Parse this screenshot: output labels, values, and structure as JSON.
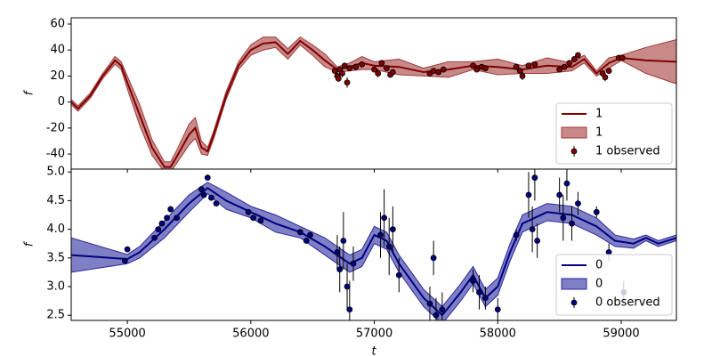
{
  "chart_data": [
    {
      "type": "line",
      "ylabel": "f",
      "legend": "lower right",
      "xlim": [
        54545,
        59447
      ],
      "ylim": [
        -51.6,
        64.8
      ],
      "xticks": [
        55000,
        56000,
        57000,
        58000,
        59000
      ],
      "yticks": [
        -40,
        -20,
        0,
        20,
        40,
        60
      ],
      "x": [
        54545,
        54600,
        54700,
        54800,
        54900,
        54950,
        55000,
        55100,
        55200,
        55300,
        55350,
        55400,
        55500,
        55550,
        55600,
        55650,
        55700,
        55800,
        55900,
        56000,
        56100,
        56200,
        56300,
        56400,
        56500,
        56600,
        56700,
        56800,
        56900,
        57000,
        57200,
        57400,
        57600,
        57800,
        58000,
        58200,
        58400,
        58600,
        58700,
        58800,
        58900,
        59000,
        59200,
        59447
      ],
      "series": [
        {
          "name": "1",
          "color": "#800000",
          "values": [
            0,
            -5,
            5,
            20,
            32,
            28,
            15,
            -10,
            -35,
            -50,
            -50,
            -42,
            -25,
            -20,
            -35,
            -38,
            -25,
            5,
            28,
            40,
            45,
            46,
            37,
            47,
            40,
            32,
            25,
            27,
            30,
            28,
            27,
            23,
            25,
            28,
            27,
            25,
            28,
            27,
            33,
            22,
            30,
            34,
            32,
            31
          ]
        }
      ],
      "band": {
        "name": "1",
        "color": "#a33a3a",
        "lower": [
          -2,
          -7,
          3,
          18,
          29,
          25,
          10,
          -18,
          -41,
          -54,
          -54,
          -47,
          -33,
          -28,
          -40,
          -41,
          -28,
          2,
          25,
          36,
          40,
          42,
          33,
          44,
          36,
          27,
          23,
          24,
          25,
          25,
          21,
          20,
          19,
          25,
          21,
          22,
          22,
          24,
          30,
          20,
          26,
          32,
          22,
          14
        ],
        "upper": [
          2,
          -3,
          7,
          22,
          35,
          31,
          20,
          -2,
          -29,
          -46,
          -46,
          -37,
          -17,
          -12,
          -30,
          -35,
          -22,
          8,
          31,
          44,
          50,
          50,
          41,
          50,
          44,
          37,
          27,
          30,
          35,
          31,
          33,
          26,
          31,
          31,
          33,
          28,
          34,
          30,
          36,
          24,
          34,
          36,
          42,
          48
        ]
      },
      "observed": {
        "name": "1 observed",
        "color": "#800000",
        "x": [
          56680,
          56700,
          56710,
          56720,
          56740,
          56760,
          56780,
          56800,
          56850,
          56900,
          57000,
          57030,
          57060,
          57100,
          57130,
          57150,
          57450,
          57480,
          57520,
          57560,
          57800,
          57830,
          57870,
          57900,
          58150,
          58180,
          58200,
          58250,
          58300,
          58500,
          58540,
          58580,
          58620,
          58650,
          58850,
          58870,
          58900,
          58980,
          59010
        ],
        "values": [
          24,
          20,
          18,
          25,
          22,
          28,
          15,
          26,
          27,
          29,
          25,
          22,
          30,
          26,
          21,
          23,
          22,
          24,
          23,
          25,
          28,
          25,
          27,
          26,
          27,
          24,
          20,
          28,
          29,
          25,
          27,
          30,
          33,
          36,
          22,
          19,
          24,
          34,
          34
        ],
        "errors": [
          2,
          3,
          2,
          2,
          3,
          2,
          4,
          2,
          2,
          2,
          2,
          3,
          2,
          2,
          2,
          2,
          2,
          2,
          2,
          2,
          2,
          2,
          2,
          2,
          2,
          2,
          3,
          2,
          2,
          2,
          2,
          2,
          2,
          2,
          2,
          3,
          2,
          2,
          2
        ]
      }
    },
    {
      "type": "line",
      "ylabel": "f",
      "xlabel": "t",
      "legend": "lower right",
      "xlim": [
        54545,
        59447
      ],
      "ylim": [
        2.41,
        5.05
      ],
      "xticks": [
        55000,
        56000,
        57000,
        58000,
        59000
      ],
      "yticks": [
        2.5,
        {
          "value": 3,
          "label": "3.0"
        },
        3.5,
        {
          "value": 4,
          "label": "4.0"
        },
        4.5,
        {
          "value": 5,
          "label": "5.0"
        }
      ],
      "x": [
        54545,
        55000,
        55100,
        55300,
        55500,
        55650,
        55800,
        56000,
        56200,
        56400,
        56600,
        56800,
        56900,
        57000,
        57100,
        57200,
        57400,
        57550,
        57700,
        57800,
        57900,
        58000,
        58100,
        58200,
        58400,
        58600,
        58800,
        58950,
        59100,
        59200,
        59300,
        59447
      ],
      "series": [
        {
          "name": "0",
          "color": "#000080",
          "values": [
            3.55,
            3.48,
            3.6,
            4.0,
            4.45,
            4.72,
            4.5,
            4.3,
            4.1,
            3.95,
            3.7,
            3.4,
            3.5,
            3.9,
            3.8,
            3.4,
            2.8,
            2.5,
            2.9,
            3.2,
            2.8,
            3.0,
            3.6,
            4.1,
            4.3,
            4.25,
            4.05,
            3.8,
            3.75,
            3.85,
            3.75,
            3.85
          ]
        }
      ],
      "band": {
        "name": "0",
        "color": "#2a2aa0",
        "lower": [
          3.25,
          3.4,
          3.5,
          3.85,
          4.3,
          4.62,
          4.35,
          4.2,
          3.95,
          3.85,
          3.55,
          3.25,
          3.35,
          3.75,
          3.65,
          3.25,
          2.65,
          2.35,
          2.75,
          3.05,
          2.65,
          2.85,
          3.45,
          3.95,
          4.15,
          4.1,
          3.9,
          3.7,
          3.67,
          3.8,
          3.7,
          3.8
        ],
        "upper": [
          3.85,
          3.56,
          3.7,
          4.15,
          4.6,
          4.82,
          4.65,
          4.4,
          4.25,
          4.05,
          3.85,
          3.55,
          3.65,
          4.05,
          3.95,
          3.55,
          2.95,
          2.65,
          3.05,
          3.35,
          2.95,
          3.15,
          3.75,
          4.25,
          4.45,
          4.4,
          4.2,
          3.9,
          3.83,
          3.9,
          3.8,
          3.9
        ]
      },
      "observed": {
        "name": "0 observed",
        "color": "#000080",
        "x": [
          54980,
          55000,
          55220,
          55250,
          55280,
          55320,
          55350,
          55400,
          55600,
          55620,
          55650,
          55680,
          55720,
          55980,
          56020,
          56080,
          56400,
          56450,
          56480,
          56700,
          56720,
          56750,
          56780,
          56800,
          56830,
          57050,
          57080,
          57120,
          57150,
          57200,
          57450,
          57480,
          57500,
          57550,
          57800,
          57850,
          57900,
          58000,
          58150,
          58250,
          58280,
          58300,
          58320,
          58500,
          58530,
          58560,
          58600,
          58650,
          58800,
          58900,
          59020
        ],
        "values": [
          3.45,
          3.65,
          3.85,
          4.0,
          4.1,
          4.2,
          4.35,
          4.2,
          4.7,
          4.6,
          4.9,
          4.55,
          4.45,
          4.3,
          4.2,
          4.15,
          3.95,
          3.8,
          3.9,
          3.6,
          3.3,
          3.8,
          3.0,
          2.6,
          3.4,
          3.9,
          4.2,
          3.7,
          4.0,
          3.2,
          2.7,
          3.5,
          2.5,
          2.6,
          3.1,
          2.9,
          2.8,
          2.6,
          3.9,
          4.6,
          4.0,
          4.9,
          3.8,
          4.6,
          4.2,
          4.8,
          4.1,
          4.45,
          4.3,
          3.6,
          2.9
        ],
        "errors": [
          0.04,
          0.05,
          0.05,
          0.05,
          0.05,
          0.05,
          0.05,
          0.05,
          0.05,
          0.05,
          0.05,
          0.05,
          0.05,
          0.05,
          0.05,
          0.05,
          0.05,
          0.05,
          0.05,
          0.3,
          0.4,
          0.5,
          0.4,
          0.5,
          0.3,
          0.4,
          0.5,
          0.5,
          0.4,
          0.3,
          0.3,
          0.3,
          0.3,
          0.3,
          0.2,
          0.3,
          0.2,
          0.2,
          0.1,
          0.4,
          0.4,
          0.4,
          0.3,
          0.3,
          0.4,
          0.3,
          0.3,
          0.2,
          0.1,
          0.15,
          0.2
        ]
      }
    }
  ]
}
